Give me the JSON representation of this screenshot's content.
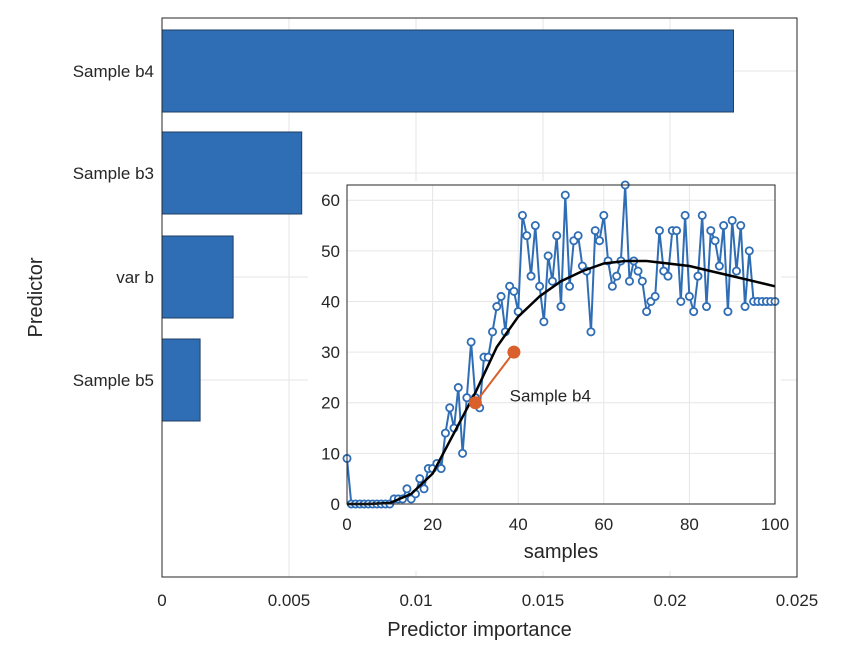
{
  "chart_data": [
    {
      "type": "bar",
      "orientation": "horizontal",
      "categories": [
        "Sample b4",
        "Sample b3",
        "var b",
        "Sample b5"
      ],
      "values": [
        0.0225,
        0.0055,
        0.0028,
        0.0015
      ],
      "xlabel": "Predictor importance",
      "ylabel": "Predictor",
      "xlim": [
        0,
        0.025
      ],
      "xticks": [
        "0",
        "0.005",
        "0.01",
        "0.015",
        "0.02",
        "0.025"
      ],
      "grid": true,
      "bar_color": "#2f6db5"
    },
    {
      "type": "line",
      "inset": true,
      "xlabel": "samples",
      "ylabel": "",
      "xlim": [
        0,
        100
      ],
      "ylim": [
        0,
        63
      ],
      "xticks": [
        "0",
        "20",
        "40",
        "60",
        "80",
        "100"
      ],
      "yticks": [
        "0",
        "10",
        "20",
        "30",
        "40",
        "50",
        "60"
      ],
      "grid": true,
      "series": [
        {
          "name": "",
          "color": "#2f6db5",
          "marker": "circle",
          "x": [
            0,
            1,
            2,
            3,
            4,
            5,
            6,
            7,
            8,
            9,
            10,
            11,
            12,
            13,
            14,
            15,
            16,
            17,
            18,
            19,
            20,
            21,
            22,
            23,
            24,
            25,
            26,
            27,
            28,
            29,
            30,
            31,
            32,
            33,
            34,
            35,
            36,
            37,
            38,
            39,
            40,
            41,
            42,
            43,
            44,
            45,
            46,
            47,
            48,
            49,
            50,
            51,
            52,
            53,
            54,
            55,
            56,
            57,
            58,
            59,
            60,
            61,
            62,
            63,
            64,
            65,
            66,
            67,
            68,
            69,
            70,
            71,
            72,
            73,
            74,
            75,
            76,
            77,
            78,
            79,
            80,
            81,
            82,
            83,
            84,
            85,
            86,
            87,
            88,
            89,
            90,
            91,
            92,
            93,
            94,
            95,
            96,
            97,
            98,
            99,
            100
          ],
          "y": [
            9,
            0,
            0,
            0,
            0,
            0,
            0,
            0,
            0,
            0,
            0,
            1,
            1,
            1,
            3,
            1,
            2,
            5,
            3,
            7,
            7,
            8,
            7,
            14,
            19,
            15,
            23,
            10,
            21,
            32,
            21,
            19,
            29,
            29,
            34,
            39,
            41,
            34,
            43,
            42,
            38,
            57,
            53,
            45,
            55,
            43,
            36,
            49,
            44,
            53,
            39,
            61,
            43,
            52,
            53,
            47,
            46,
            34,
            54,
            52,
            57,
            48,
            43,
            45,
            48,
            63,
            44,
            48,
            46,
            44,
            38,
            40,
            41,
            54,
            46,
            45,
            54,
            54,
            40,
            57,
            41,
            38,
            45,
            57,
            39,
            54,
            52,
            47,
            55,
            38,
            56,
            46,
            55,
            39,
            50,
            40,
            40,
            40,
            40,
            40,
            40
          ]
        },
        {
          "name": "",
          "color": "#000000",
          "marker": "none",
          "x": [
            0,
            5,
            10,
            15,
            20,
            25,
            30,
            35,
            40,
            45,
            50,
            55,
            60,
            65,
            70,
            75,
            80,
            85,
            90,
            95,
            100
          ],
          "y": [
            0,
            0,
            0.2,
            2,
            6,
            14,
            22,
            31,
            37,
            41,
            44,
            46,
            47.5,
            48,
            48,
            47.5,
            47,
            46,
            45,
            44,
            43
          ]
        },
        {
          "name": "",
          "color": "#d95f2b",
          "marker": "filled-circle",
          "x": [
            30,
            39
          ],
          "y": [
            20,
            30
          ]
        }
      ],
      "annotations": [
        {
          "text": "Sample b4"
        }
      ]
    }
  ]
}
